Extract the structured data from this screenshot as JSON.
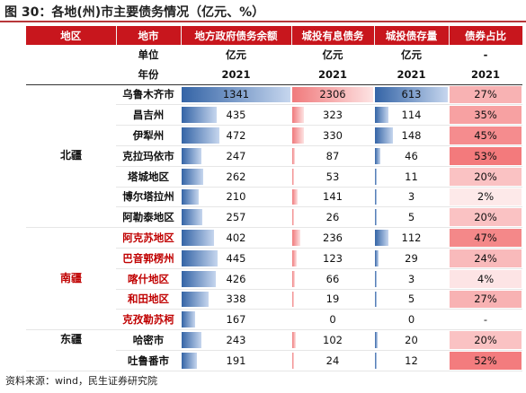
{
  "title": "图 30：各地(州)市主要债务情况（亿元、%）",
  "source": "资料来源：wind，民生证券研究院",
  "headers": [
    "地区",
    "地市",
    "地方政府债务余额",
    "城投有息债务",
    "城投债存量",
    "债券占比"
  ],
  "units": [
    "",
    "单位",
    "亿元",
    "亿元",
    "亿元",
    "-"
  ],
  "years": [
    "",
    "年份",
    "2021",
    "2021",
    "2021",
    "2021"
  ],
  "rows": [
    {
      "city": "乌鲁木齐市",
      "gov": "1341",
      "cit": "2306",
      "bond": "613",
      "pct": "27%"
    },
    {
      "city": "昌吉州",
      "gov": "435",
      "cit": "323",
      "bond": "114",
      "pct": "35%"
    },
    {
      "city": "伊犁州",
      "gov": "472",
      "cit": "330",
      "bond": "148",
      "pct": "45%"
    },
    {
      "city": "克拉玛依市",
      "gov": "247",
      "cit": "87",
      "bond": "46",
      "pct": "53%"
    },
    {
      "city": "塔城地区",
      "gov": "262",
      "cit": "53",
      "bond": "11",
      "pct": "20%"
    },
    {
      "city": "博尔塔拉州",
      "gov": "210",
      "cit": "141",
      "bond": "3",
      "pct": "2%"
    },
    {
      "city": "阿勒泰地区",
      "gov": "257",
      "cit": "26",
      "bond": "5",
      "pct": "20%"
    },
    {
      "city": "阿克苏地区",
      "gov": "402",
      "cit": "236",
      "bond": "112",
      "pct": "47%"
    },
    {
      "city": "巴音郭楞州",
      "gov": "445",
      "cit": "123",
      "bond": "29",
      "pct": "24%"
    },
    {
      "city": "喀什地区",
      "gov": "426",
      "cit": "66",
      "bond": "3",
      "pct": "4%"
    },
    {
      "city": "和田地区",
      "gov": "338",
      "cit": "19",
      "bond": "5",
      "pct": "27%"
    },
    {
      "city": "克孜勒苏柯",
      "gov": "167",
      "cit": "0",
      "bond": "0",
      "pct": "-"
    },
    {
      "city": "哈密市",
      "gov": "243",
      "cit": "102",
      "bond": "20",
      "pct": "20%"
    },
    {
      "city": "吐鲁番市",
      "gov": "191",
      "cit": "24",
      "bond": "12",
      "pct": "52%"
    }
  ],
  "regions": [
    {
      "name": "北疆",
      "start": 0,
      "span": 7,
      "label_row": 3
    },
    {
      "name": "南疆",
      "start": 7,
      "span": 5,
      "label_row": 2
    },
    {
      "name": "东疆",
      "start": 12,
      "span": 2,
      "label_row": 0
    }
  ],
  "colors": {
    "header_bg": "#c8161d",
    "south_text": "#c00000",
    "gov_bar": "#3464a6",
    "cit_bar": "#f07a7c",
    "pct_bg": "#f26c6e"
  }
}
